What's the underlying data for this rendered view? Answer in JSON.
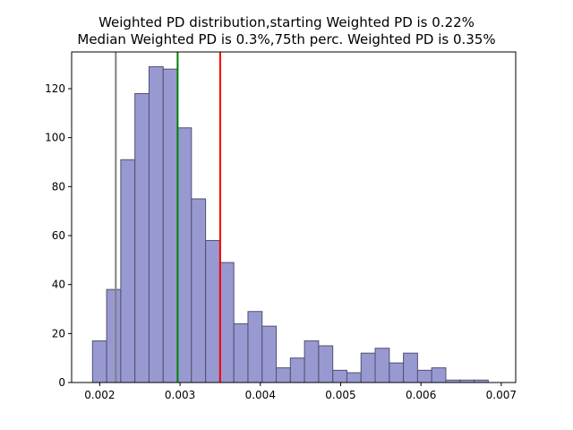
{
  "chart_data": {
    "type": "bar",
    "title_line1": "Weighted PD distribution,starting Weighted PD is 0.22%",
    "title_line2": "Median Weighted PD is 0.3%,75th perc. Weighted PD is 0.35%",
    "xlabel": "",
    "ylabel": "",
    "xlim": [
      0.00165,
      0.00718
    ],
    "ylim": [
      0,
      135
    ],
    "xticks": [
      0.002,
      0.003,
      0.004,
      0.005,
      0.006,
      0.007
    ],
    "xtick_labels": [
      "0.002",
      "0.003",
      "0.004",
      "0.005",
      "0.006",
      "0.007"
    ],
    "yticks": [
      0,
      20,
      40,
      60,
      80,
      100,
      120
    ],
    "ytick_labels": [
      "0",
      "20",
      "40",
      "60",
      "80",
      "100",
      "120"
    ],
    "bin_start": 0.00191,
    "bin_width": 0.000176,
    "counts": [
      17,
      38,
      91,
      118,
      129,
      128,
      104,
      75,
      58,
      49,
      24,
      29,
      23,
      6,
      10,
      17,
      15,
      5,
      4,
      12,
      14,
      8,
      12,
      5,
      6,
      1,
      1,
      1
    ],
    "bar_color": "#9999d2",
    "bar_edge_color": "#505070",
    "grid": false,
    "vlines": [
      {
        "label": "starting Weighted PD",
        "x": 0.0022,
        "color": "#808080"
      },
      {
        "label": "Median Weighted PD",
        "x": 0.00297,
        "color": "#008000"
      },
      {
        "label": "75th perc. Weighted PD",
        "x": 0.0035,
        "color": "#ff0000"
      }
    ]
  }
}
